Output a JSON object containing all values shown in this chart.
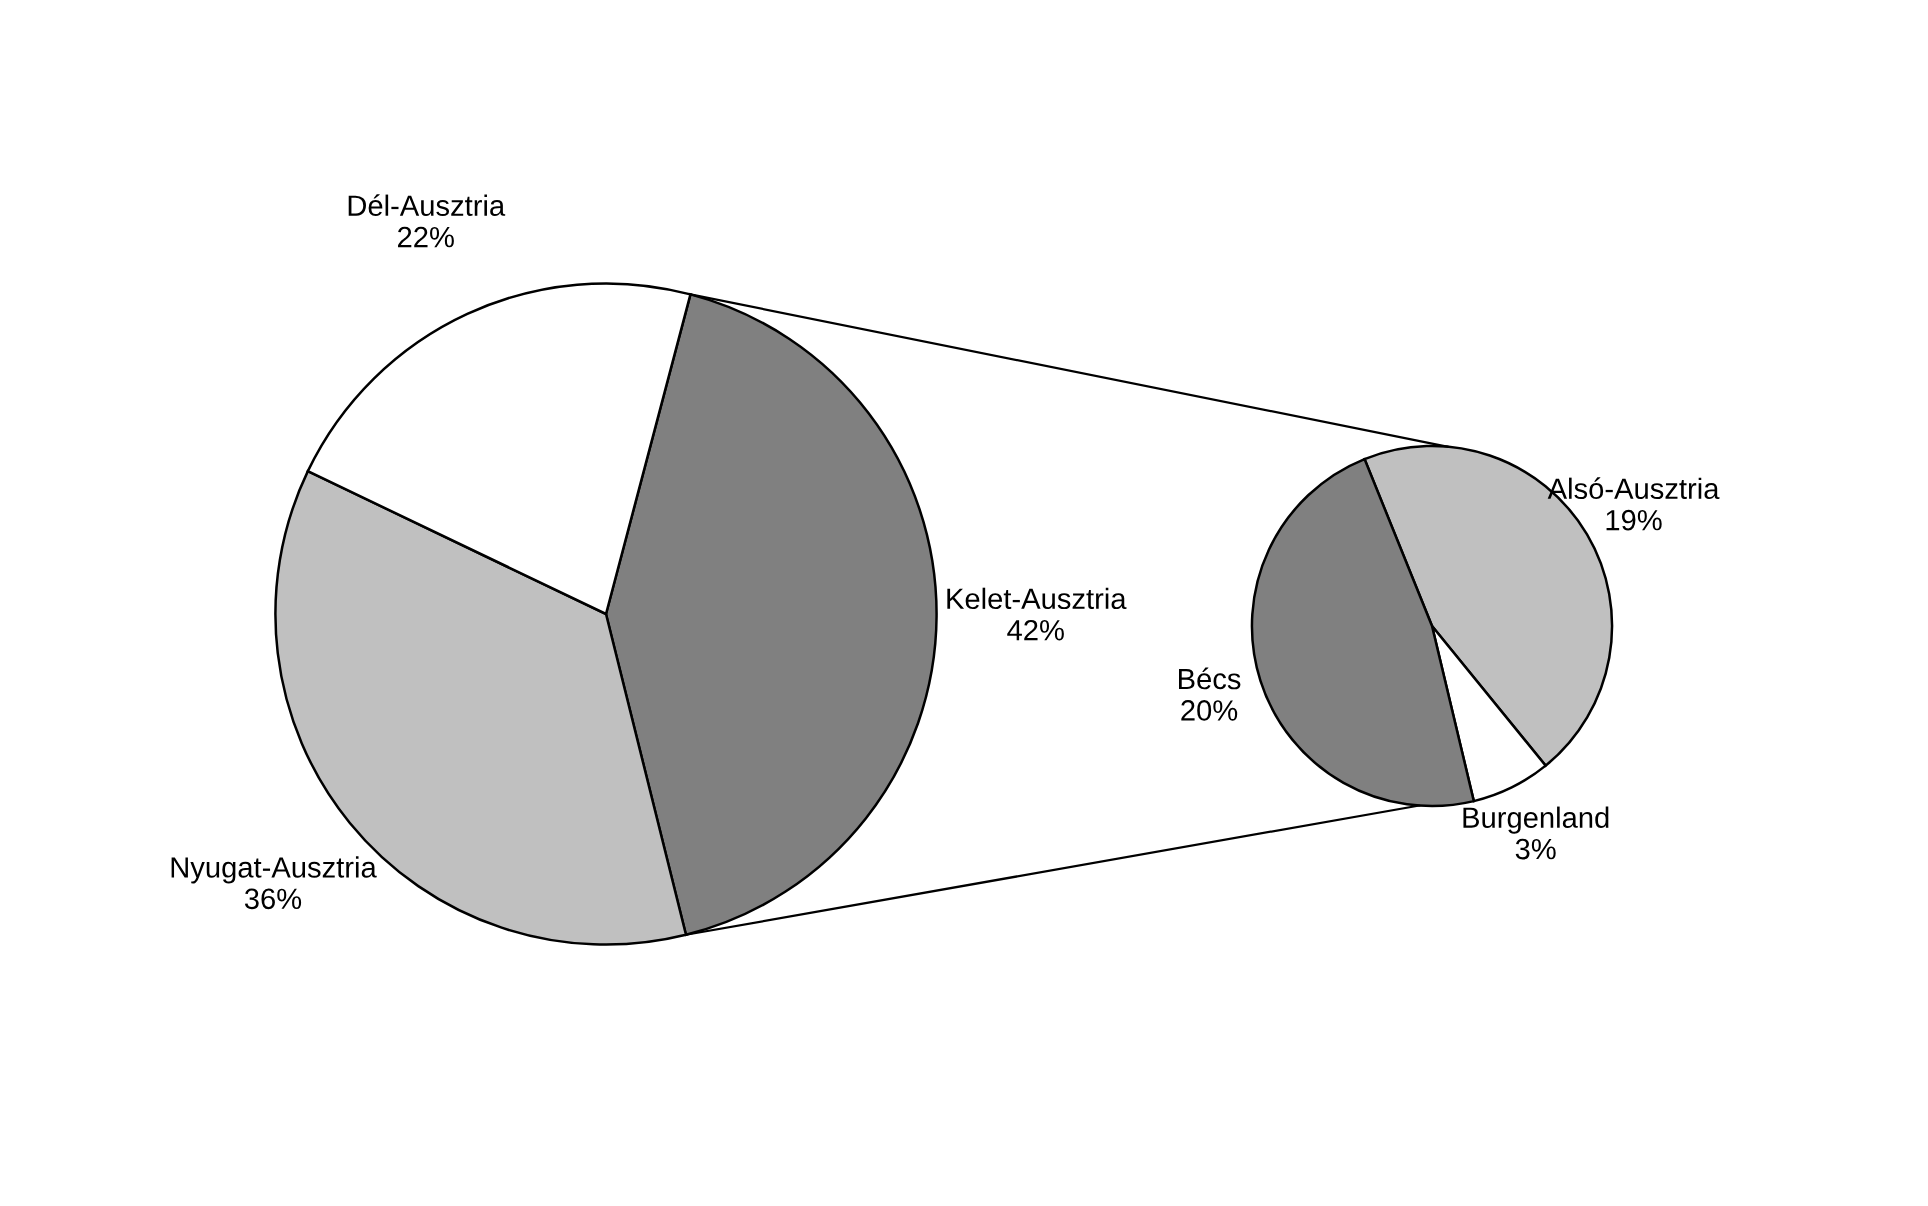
{
  "chart_data": [
    {
      "type": "pie",
      "categories": [
        "Kelet-Ausztria",
        "Nyugat-Ausztria",
        "Dél-Ausztria"
      ],
      "values": [
        42,
        36,
        22
      ],
      "value_labels": [
        "42%",
        "36%",
        "22%"
      ],
      "colors": [
        "#808080",
        "#c0c0c0",
        "#ffffff"
      ]
    },
    {
      "type": "pie",
      "categories": [
        "Alsó-Ausztria",
        "Burgenland",
        "Bécs"
      ],
      "values": [
        19,
        3,
        20
      ],
      "value_labels": [
        "19%",
        "3%",
        "20%"
      ],
      "colors": [
        "#c0c0c0",
        "#ffffff",
        "#808080"
      ]
    }
  ]
}
